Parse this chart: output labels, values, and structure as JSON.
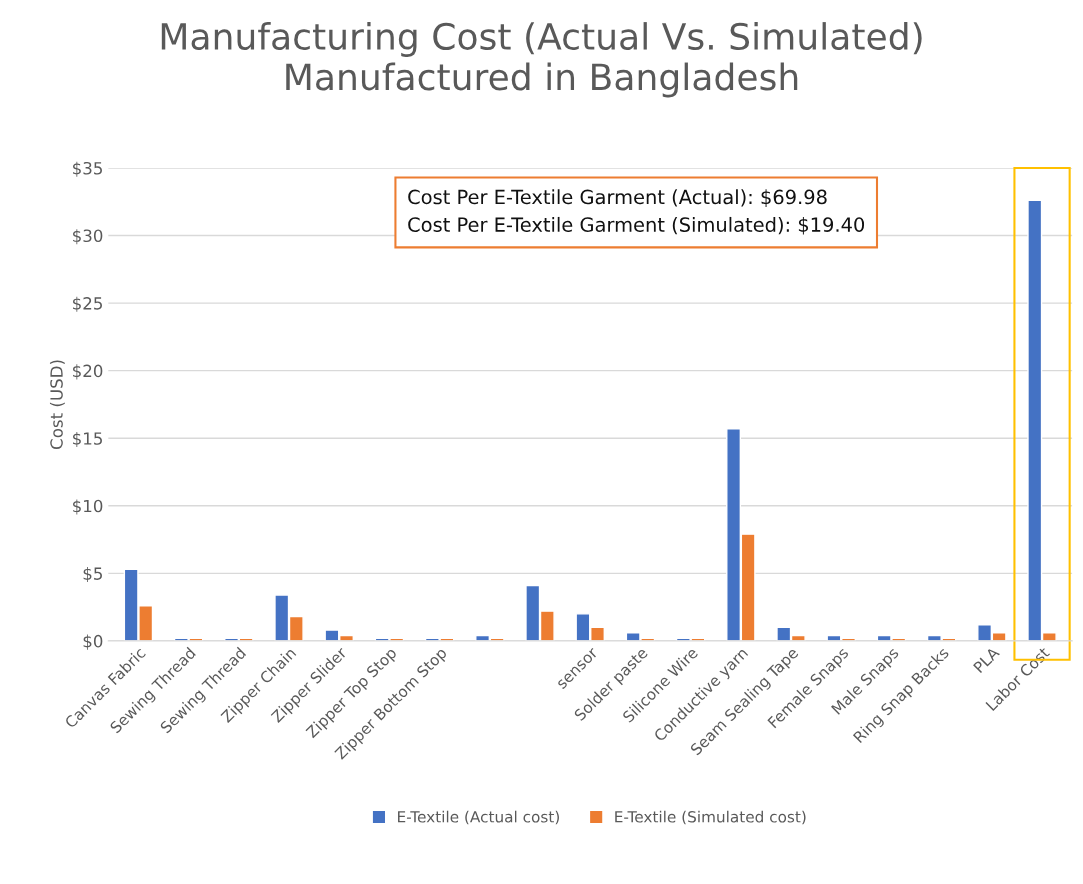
{
  "chart_data": {
    "type": "bar",
    "title": "Manufacturing Cost (Actual Vs. Simulated)\nManufactured in Bangladesh",
    "ylabel": "Cost (USD)",
    "categories": [
      "Canvas Fabric",
      "Sewing Thread",
      "Sewing Thread",
      "Zipper Chain",
      "Zipper Slider",
      "Zipper Top Stop",
      "Zipper Bottom Stop",
      null,
      null,
      "sensor",
      "Solder paste",
      "Silicone Wire",
      "Conductive yarn",
      "Seam Sealing Tape",
      "Female Snaps",
      "Male Snaps",
      "Ring Snap Backs",
      "PLA",
      "Labor Cost"
    ],
    "series": [
      {
        "name": "E-Textile (Actual cost)",
        "color": "#4472c4",
        "values": [
          5.3,
          0.2,
          0.2,
          3.4,
          0.8,
          0.2,
          0.2,
          0.4,
          4.1,
          2.0,
          0.6,
          0.2,
          15.7,
          1.0,
          0.4,
          0.4,
          0.4,
          1.2,
          32.6
        ]
      },
      {
        "name": "E-Textile (Simulated cost)",
        "color": "#ed7d31",
        "values": [
          2.6,
          0.2,
          0.2,
          1.8,
          0.4,
          0.2,
          0.2,
          0.2,
          2.2,
          1.0,
          0.2,
          0.2,
          7.9,
          0.4,
          0.2,
          0.2,
          0.2,
          0.6,
          0.6
        ]
      }
    ],
    "ylim": [
      0,
      35
    ],
    "yticks": [
      {
        "value": 0,
        "label": "$0"
      },
      {
        "value": 5,
        "label": "$5"
      },
      {
        "value": 10,
        "label": "$10"
      },
      {
        "value": 15,
        "label": "$15"
      },
      {
        "value": 20,
        "label": "$20"
      },
      {
        "value": 25,
        "label": "$25"
      },
      {
        "value": 30,
        "label": "$30"
      },
      {
        "value": 35,
        "label": "$35"
      }
    ],
    "grid": "y",
    "legend": "bottom",
    "annotations": [
      "Cost Per E-Textile Garment (Actual): $69.98\nCost Per E-Textile Garment (Simulated): $19.40"
    ]
  }
}
